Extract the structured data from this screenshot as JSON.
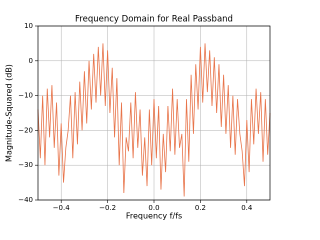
{
  "chart_data": {
    "type": "line",
    "title": "Frequency Domain for Real Passband",
    "xlabel": "Frequency f/fs",
    "ylabel": "Magnitude-Squared (dB)",
    "color": "#e8744a",
    "grid": true,
    "xlim": [
      -0.5,
      0.5
    ],
    "ylim": [
      -40,
      10
    ],
    "xticks": [
      {
        "value": -0.4,
        "label": "−0.4"
      },
      {
        "value": -0.2,
        "label": "−0.2"
      },
      {
        "value": 0,
        "label": "0.0"
      },
      0.2,
      0.4
    ],
    "yticks": [
      {
        "value": -40,
        "label": "−40"
      },
      {
        "value": -30,
        "label": "−30"
      },
      {
        "value": -20,
        "label": "−20"
      },
      {
        "value": -10,
        "label": "−10"
      },
      0,
      10
    ],
    "x": [
      -0.5,
      -0.49,
      -0.48,
      -0.47,
      -0.46,
      -0.45,
      -0.44,
      -0.43,
      -0.42,
      -0.41,
      -0.4,
      -0.39,
      -0.38,
      -0.37,
      -0.36,
      -0.35,
      -0.34,
      -0.33,
      -0.32,
      -0.31,
      -0.3,
      -0.29,
      -0.28,
      -0.27,
      -0.26,
      -0.25,
      -0.24,
      -0.23,
      -0.22,
      -0.21,
      -0.2,
      -0.19,
      -0.18,
      -0.17,
      -0.16,
      -0.15,
      -0.14,
      -0.13,
      -0.12,
      -0.11,
      -0.1,
      -0.09,
      -0.08,
      -0.07,
      -0.06,
      -0.05,
      -0.04,
      -0.03,
      -0.02,
      -0.01,
      0,
      0.01,
      0.02,
      0.03,
      0.04,
      0.05,
      0.06,
      0.07,
      0.08,
      0.09,
      0.1,
      0.11,
      0.12,
      0.13,
      0.14,
      0.15,
      0.16,
      0.17,
      0.18,
      0.19,
      0.2,
      0.21,
      0.22,
      0.23,
      0.24,
      0.25,
      0.26,
      0.27,
      0.28,
      0.29,
      0.3,
      0.31,
      0.32,
      0.33,
      0.34,
      0.35,
      0.36,
      0.37,
      0.38,
      0.39,
      0.4,
      0.41,
      0.42,
      0.43,
      0.44,
      0.45,
      0.46,
      0.47,
      0.48,
      0.49,
      0.5
    ],
    "values": [
      -14,
      -28,
      -10,
      -30,
      -8,
      -22,
      -7,
      -25,
      -12,
      -33,
      -18,
      -35,
      -25,
      -20,
      -10,
      -28,
      -9,
      -24,
      -6,
      -20,
      -3,
      -18,
      0,
      -14,
      2,
      -12,
      4,
      -10,
      5,
      -13,
      3,
      -15,
      -2,
      -22,
      -5,
      -30,
      -12,
      -38,
      -22,
      -26,
      -12,
      -28,
      -9,
      -25,
      -14,
      -33,
      -22,
      -36,
      -14,
      -30,
      -11,
      -28,
      -13,
      -37,
      -21,
      -32,
      -13,
      -26,
      -8,
      -27,
      -11,
      -25,
      -21,
      -39,
      -11,
      -29,
      -4,
      -21,
      -1,
      -14,
      4,
      -12,
      5,
      -9,
      3,
      -13,
      1,
      -15,
      -1,
      -19,
      -4,
      -21,
      -7,
      -25,
      -10,
      -27,
      -11,
      -21,
      -26,
      -36,
      -17,
      -32,
      -11,
      -24,
      -8,
      -21,
      -9,
      -29,
      -11,
      -27,
      -15
    ]
  }
}
